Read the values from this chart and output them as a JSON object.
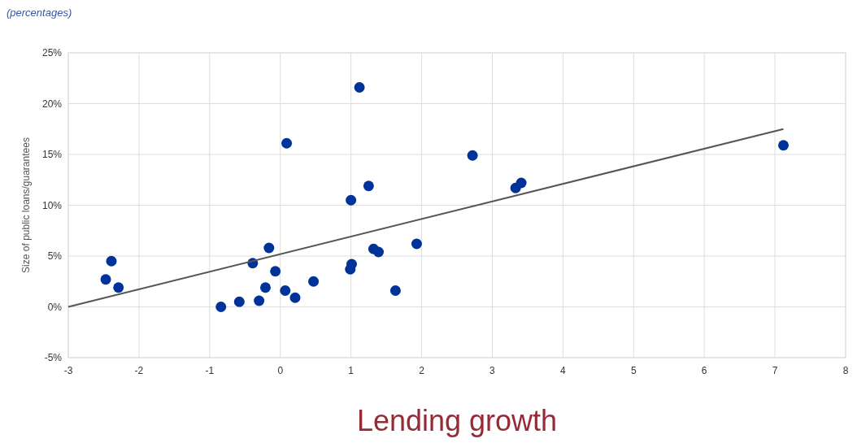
{
  "chart_data": {
    "type": "scatter",
    "subtitle": "(percentages)",
    "xlabel": "Lending growth",
    "ylabel": "Size of public loans/guarantees",
    "xlim": [
      -3,
      8
    ],
    "xticks": [
      -3,
      -2,
      -1,
      0,
      1,
      2,
      3,
      4,
      5,
      6,
      7,
      8
    ],
    "ylim": [
      -5,
      25
    ],
    "yticks": [
      {
        "value": -5,
        "label": "-5%"
      },
      {
        "value": 0,
        "label": "0%"
      },
      {
        "value": 5,
        "label": "5%"
      },
      {
        "value": 10,
        "label": "10%"
      },
      {
        "value": 15,
        "label": "15%"
      },
      {
        "value": 20,
        "label": "20%"
      },
      {
        "value": 25,
        "label": "25%"
      }
    ],
    "grid": true,
    "series": [
      {
        "color": "#003399",
        "marker": "circle",
        "x": [
          -2.47,
          -2.39,
          -2.29,
          -0.84,
          -0.58,
          -0.3,
          -0.39,
          -0.21,
          -0.16,
          -0.07,
          0.07,
          0.21,
          0.09,
          0.47,
          0.99,
          1.01,
          1.0,
          1.12,
          1.25,
          1.32,
          1.39,
          1.63,
          1.93,
          2.72,
          3.33,
          3.41,
          7.12
        ],
        "values": [
          2.7,
          4.5,
          1.9,
          0.0,
          0.5,
          0.6,
          4.3,
          1.9,
          5.8,
          3.5,
          1.6,
          0.9,
          16.1,
          2.5,
          3.7,
          4.2,
          10.5,
          21.6,
          11.9,
          5.7,
          5.4,
          1.6,
          6.2,
          14.9,
          11.7,
          12.2,
          15.9
        ]
      },
      {
        "type": "line",
        "marker": "none",
        "color": "#555555",
        "x": [
          -3,
          7.12
        ],
        "values": [
          0.0,
          17.5
        ]
      }
    ]
  }
}
